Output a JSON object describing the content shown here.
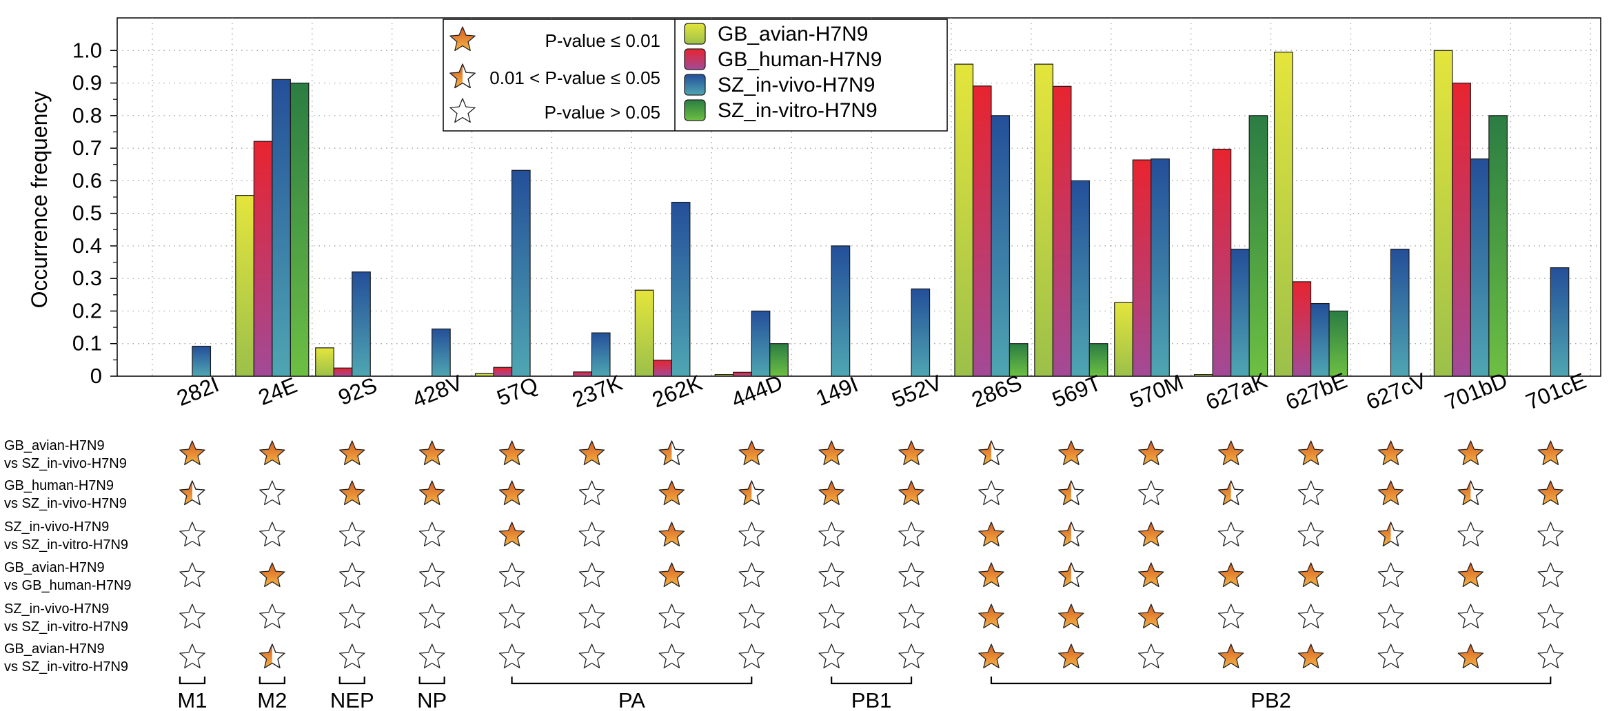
{
  "chart_data": {
    "type": "bar",
    "ylabel": "Occurrence frequency",
    "xlabel": "",
    "title": "",
    "ylim": [
      0,
      1.1
    ],
    "yticks": [
      "0",
      "0.1",
      "0.2",
      "0.3",
      "0.4",
      "0.5",
      "0.6",
      "0.7",
      "0.8",
      "0.9",
      "1.0"
    ],
    "grid": "dotted",
    "legend_position": "top-center",
    "categories": [
      "282I",
      "24E",
      "92S",
      "428V",
      "57Q",
      "237K",
      "262K",
      "444D",
      "149I",
      "552V",
      "286S",
      "569T",
      "570M",
      "627aK",
      "627bE",
      "627cV",
      "701bD",
      "701cE"
    ],
    "series": [
      {
        "name": "GB_avian-H7N9",
        "color": "#d6d93a",
        "values": [
          0,
          0.555,
          0.087,
          0,
          0.008,
          0,
          0.264,
          0.005,
          0,
          0,
          0.958,
          0.958,
          0.226,
          0.005,
          0.995,
          0,
          1.0,
          0
        ]
      },
      {
        "name": "GB_human-H7N9",
        "color": "#d8324c",
        "values": [
          0,
          0.721,
          0.025,
          0,
          0.027,
          0.013,
          0.049,
          0.012,
          0,
          0,
          0.891,
          0.89,
          0.664,
          0.697,
          0.29,
          0,
          0.9,
          0
        ]
      },
      {
        "name": "SZ_in-vivo-H7N9",
        "color": "#2e6ca0",
        "values": [
          0.092,
          0.911,
          0.32,
          0.145,
          0.632,
          0.133,
          0.534,
          0.2,
          0.4,
          0.268,
          0.8,
          0.6,
          0.667,
          0.39,
          0.223,
          0.39,
          0.667,
          0.333
        ]
      },
      {
        "name": "SZ_in-vitro-H7N9",
        "color": "#3f9840",
        "values": [
          0,
          0.9,
          0,
          0,
          0,
          0,
          0,
          0.1,
          0,
          0,
          0.1,
          0.1,
          0,
          0.8,
          0.2,
          0,
          0.8,
          0
        ]
      }
    ],
    "significance_legend": [
      {
        "level": "full",
        "label": "P-value ≤ 0.01"
      },
      {
        "level": "half",
        "label": "0.01 < P-value ≤ 0.05"
      },
      {
        "level": "empty",
        "label": "P-value > 0.05"
      }
    ],
    "comparisons": [
      {
        "line1": "GB_avian-H7N9",
        "line2": "vs SZ_in-vivo-H7N9",
        "stars": [
          "F",
          "F",
          "F",
          "F",
          "F",
          "F",
          "H",
          "F",
          "F",
          "F",
          "H",
          "F",
          "F",
          "F",
          "F",
          "F",
          "F",
          "F"
        ]
      },
      {
        "line1": "GB_human-H7N9",
        "line2": " vs SZ_in-vivo-H7N9",
        "stars": [
          "H",
          "E",
          "F",
          "F",
          "F",
          "E",
          "F",
          "H",
          "F",
          "F",
          "E",
          "H",
          "E",
          "H",
          "E",
          "F",
          "H",
          "F"
        ]
      },
      {
        "line1": "SZ_in-vivo-H7N9",
        "line2": " vs SZ_in-vitro-H7N9",
        "stars": [
          "E",
          "E",
          "E",
          "E",
          "F",
          "E",
          "F",
          "E",
          "E",
          "E",
          "F",
          "H",
          "F",
          "E",
          "E",
          "H",
          "E",
          "E"
        ]
      },
      {
        "line1": "GB_avian-H7N9",
        "line2": " vs GB_human-H7N9",
        "stars": [
          "E",
          "F",
          "E",
          "E",
          "E",
          "E",
          "F",
          "E",
          "E",
          "E",
          "F",
          "H",
          "F",
          "F",
          "F",
          "E",
          "F",
          "E"
        ]
      },
      {
        "line1": "SZ_in-vivo-H7N9",
        "line2": " vs SZ_in-vitro-H7N9",
        "stars": [
          "E",
          "E",
          "E",
          "E",
          "E",
          "E",
          "E",
          "E",
          "E",
          "E",
          "F",
          "F",
          "F",
          "E",
          "E",
          "E",
          "E",
          "E"
        ]
      },
      {
        "line1": "GB_avian-H7N9",
        "line2": "vs SZ_in-vitro-H7N9",
        "stars": [
          "E",
          "H",
          "E",
          "E",
          "E",
          "E",
          "E",
          "E",
          "E",
          "E",
          "F",
          "F",
          "E",
          "F",
          "F",
          "E",
          "F",
          "E"
        ]
      }
    ],
    "protein_groups": [
      {
        "name": "M1",
        "from": 0,
        "to": 0
      },
      {
        "name": "M2",
        "from": 1,
        "to": 1
      },
      {
        "name": "NEP",
        "from": 2,
        "to": 2
      },
      {
        "name": "NP",
        "from": 3,
        "to": 3
      },
      {
        "name": "PA",
        "from": 4,
        "to": 7
      },
      {
        "name": "PB1",
        "from": 8,
        "to": 9
      },
      {
        "name": "PB2",
        "from": 10,
        "to": 17
      }
    ]
  },
  "colors": {
    "star_fill_light": "#f5b04a",
    "star_fill_dark": "#d4541e",
    "axis": "#000000",
    "grid": "#9a9a9a"
  }
}
